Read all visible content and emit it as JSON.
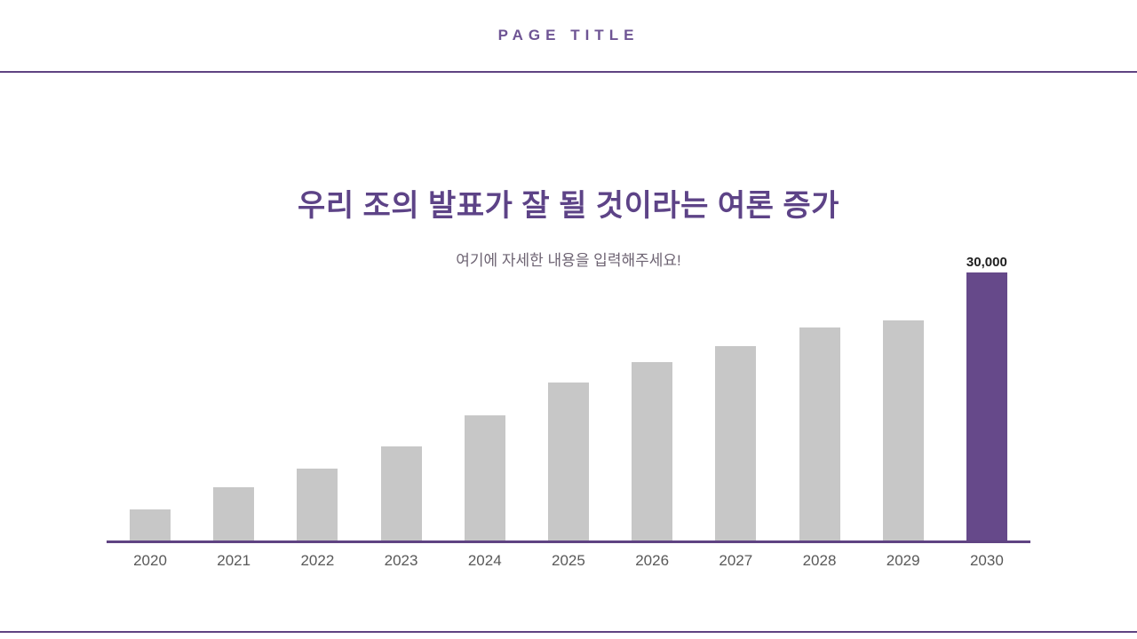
{
  "header": {
    "page_title": "PAGE TITLE"
  },
  "content": {
    "title": "우리 조의 발표가 잘 될 것이라는 여론 증가",
    "subtitle": "여기에 자세한 내용을 입력해주세요!"
  },
  "chart_data": {
    "type": "bar",
    "categories": [
      "2020",
      "2021",
      "2022",
      "2023",
      "2024",
      "2025",
      "2026",
      "2027",
      "2028",
      "2029",
      "2030"
    ],
    "values": [
      3500,
      6000,
      8000,
      10500,
      14000,
      17700,
      20000,
      21800,
      23800,
      24600,
      30000
    ],
    "title": "우리 조의 발표가 잘 될 것이라는 여론 증가",
    "xlabel": "",
    "ylabel": "",
    "ylim": [
      0,
      30000
    ],
    "grid": false,
    "legend": false,
    "highlight_category": "2030",
    "data_labels": {
      "2030": "30,000"
    },
    "colors": {
      "bar": "#c7c7c7",
      "highlight_bar": "#66498a",
      "axis_line": "#5f4382",
      "title_text": "#5d4387",
      "page_title_text": "#6e5494",
      "tick_text": "#595959",
      "value_label_text": "#1f1f1f"
    }
  }
}
